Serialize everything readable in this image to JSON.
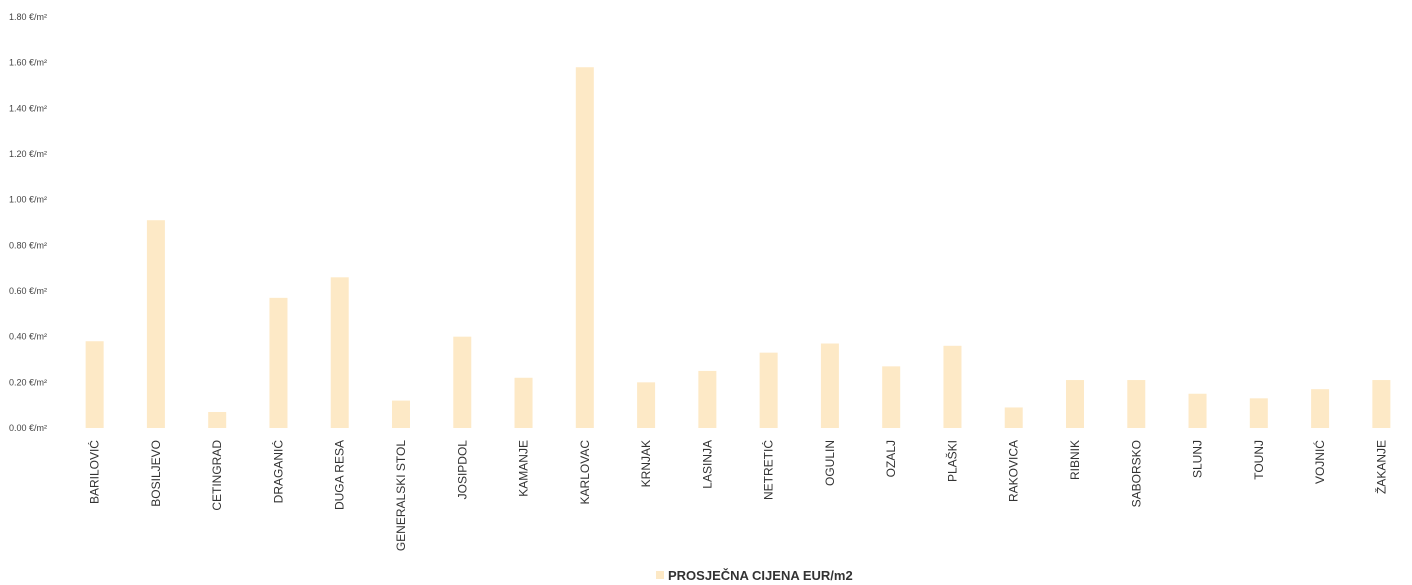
{
  "chart_data": {
    "type": "bar",
    "title": "",
    "xlabel": "",
    "ylabel": "",
    "categories": [
      "BARILOVIĆ",
      "BOSILJEVO",
      "CETINGRAD",
      "DRAGANIĆ",
      "DUGA RESA",
      "GENERALSKI STOL",
      "JOSIPDOL",
      "KAMANJE",
      "KARLOVAC",
      "KRNJAK",
      "LASINJA",
      "NETRETIĆ",
      "OGULIN",
      "OZALJ",
      "PLAŠKI",
      "RAKOVICA",
      "RIBNIK",
      "SABORSKO",
      "SLUNJ",
      "TOUNJ",
      "VOJNIĆ",
      "ŽAKANJE"
    ],
    "series": [
      {
        "name": "PROSJEČNA CIJENA EUR/m2",
        "color": "#fde9c6",
        "values": [
          0.38,
          0.91,
          0.07,
          0.57,
          0.66,
          0.12,
          0.4,
          0.22,
          1.58,
          0.2,
          0.25,
          0.33,
          0.37,
          0.27,
          0.36,
          0.09,
          0.21,
          0.21,
          0.15,
          0.13,
          0.17,
          0.21
        ]
      }
    ],
    "ylim": [
      0,
      1.8
    ],
    "yticks": [
      0,
      0.2,
      0.4,
      0.6,
      0.8,
      1.0,
      1.2,
      1.4,
      1.6,
      1.8
    ],
    "ytick_labels": [
      "0.00 €/m²",
      "0.20 €/m²",
      "0.40 €/m²",
      "0.60 €/m²",
      "0.80 €/m²",
      "1.00 €/m²",
      "1.20 €/m²",
      "1.40 €/m²",
      "1.60 €/m²",
      "1.80 €/m²"
    ],
    "grid": false,
    "legend_position": "bottom"
  }
}
